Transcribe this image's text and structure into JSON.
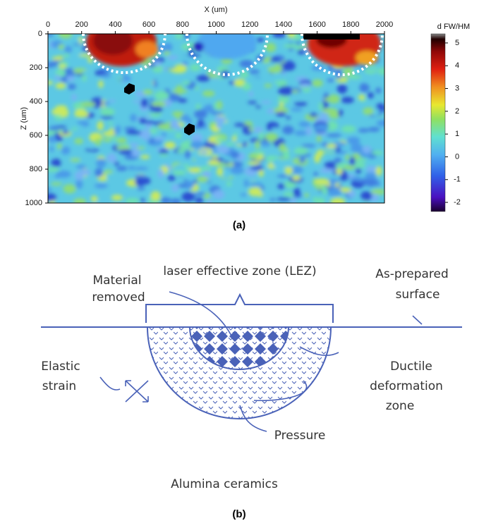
{
  "panel_a": {
    "x_axis_label": "X (um)",
    "y_axis_label": "Z (um)",
    "xticks": [
      0,
      200,
      400,
      600,
      800,
      1000,
      1200,
      1400,
      1600,
      1800,
      2000
    ],
    "xlim": [
      0,
      2000
    ],
    "yticks": [
      0,
      200,
      400,
      600,
      800,
      1000
    ],
    "ylim": [
      0,
      1000
    ],
    "colorbar_label": "d FW/HM",
    "colorbar_ticks": [
      5,
      4,
      3,
      2,
      1,
      0,
      -1,
      -2
    ],
    "colorbar_lim": [
      -2.4,
      5.4
    ],
    "caption": "(a)"
  },
  "panel_b": {
    "labels": {
      "lez": "laser effective zone (LEZ)",
      "material_removed": [
        "Material",
        "removed"
      ],
      "as_prepared": [
        "As-prepared",
        "surface"
      ],
      "elastic_strain": [
        "Elastic",
        "strain"
      ],
      "ductile": [
        "Ductile",
        "deformation",
        "zone"
      ],
      "pressure": "Pressure",
      "substrate": "Alumina ceramics"
    },
    "caption": "(b)"
  }
}
